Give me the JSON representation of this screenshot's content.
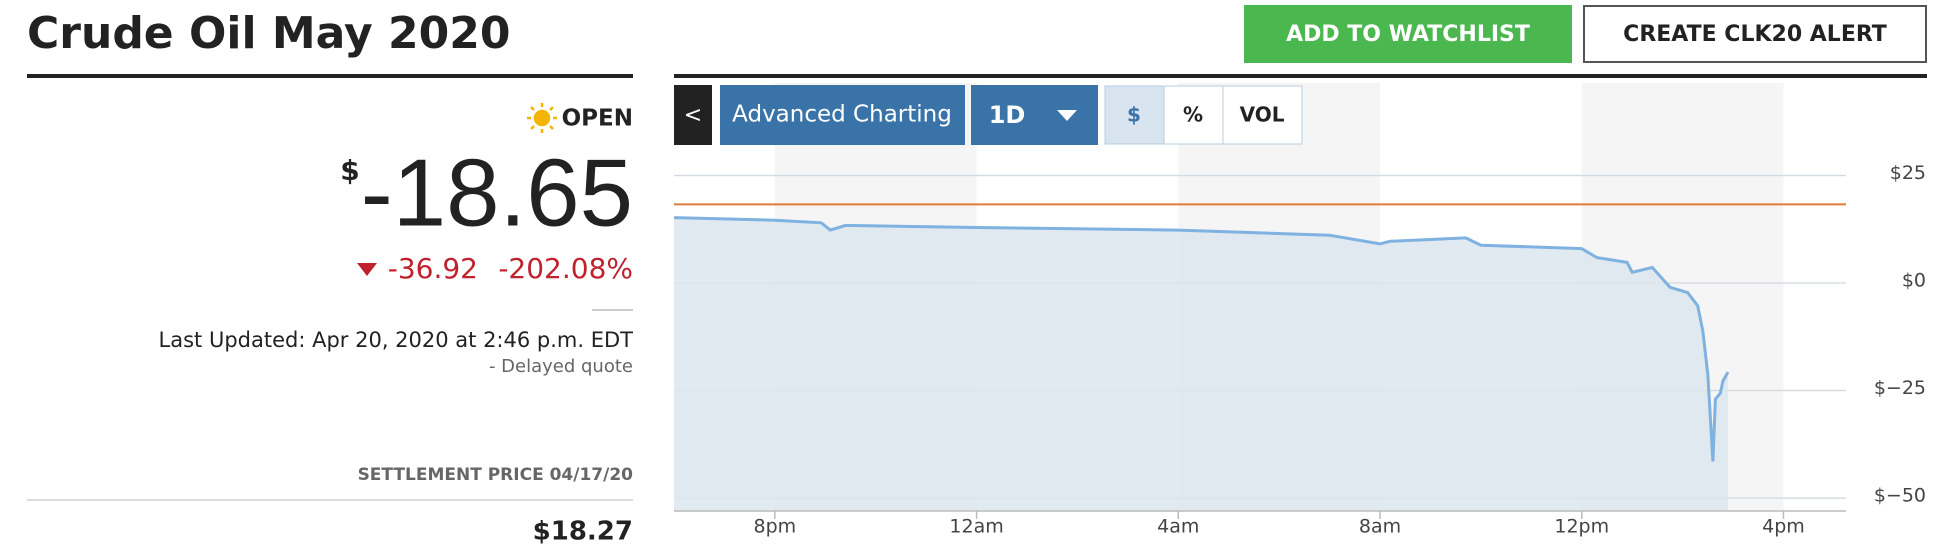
{
  "header": {
    "title": "Crude Oil May 2020",
    "watchlist_button": "ADD TO WATCHLIST",
    "alert_button": "CREATE CLK20 ALERT"
  },
  "quote": {
    "status": "OPEN",
    "currency": "$",
    "price": "-18.65",
    "change": "-36.92",
    "change_pct": "-202.08%",
    "last_updated": "Last Updated: Apr 20, 2020 at 2:46 p.m. EDT",
    "delayed": "-  Delayed quote",
    "settlement_label": "SETTLEMENT PRICE 04/17/20",
    "settlement": {
      "value": 18.27,
      "label": "$18.27"
    }
  },
  "toolbar": {
    "back": "<",
    "advanced": "Advanced Charting",
    "range": "1D",
    "modes": [
      "$",
      "%",
      "VOL"
    ]
  },
  "chart_data": {
    "type": "line",
    "color": "#7fb2e0",
    "fill": "#dce6ee",
    "reference_color": "#e07b39",
    "x": [
      0,
      2,
      2.92,
      3.1,
      3.4,
      6,
      10,
      13,
      14,
      14.2,
      15.7,
      16,
      18,
      18.3,
      18.9,
      19,
      19.4,
      19.75,
      20.1,
      20.3,
      20.4,
      20.5,
      20.6,
      20.65,
      20.75,
      20.8,
      20.9
    ],
    "values": [
      15.2,
      14.6,
      14.0,
      12.3,
      13.4,
      12.9,
      12.3,
      11.1,
      9.1,
      9.7,
      10.5,
      8.8,
      8.0,
      5.9,
      4.8,
      2.5,
      3.6,
      -1.0,
      -2.2,
      -5.3,
      -11.1,
      -21.2,
      -41.5,
      -27,
      -25.6,
      -22.7,
      -20.7
    ],
    "xlim": [
      0,
      23.24
    ],
    "ylim": [
      -53,
      46.5
    ],
    "xticks": [
      {
        "value": 2,
        "label": "8pm"
      },
      {
        "value": 6,
        "label": "12am"
      },
      {
        "value": 10,
        "label": "4am"
      },
      {
        "value": 14,
        "label": "8am"
      },
      {
        "value": 18,
        "label": "12pm"
      },
      {
        "value": 22,
        "label": "4pm"
      }
    ],
    "yticks": [
      {
        "value": 25,
        "label": "$25"
      },
      {
        "value": 0,
        "label": "$0"
      },
      {
        "value": -25,
        "label": "$−25"
      },
      {
        "value": -50,
        "label": "$−50"
      }
    ],
    "grid": true
  }
}
